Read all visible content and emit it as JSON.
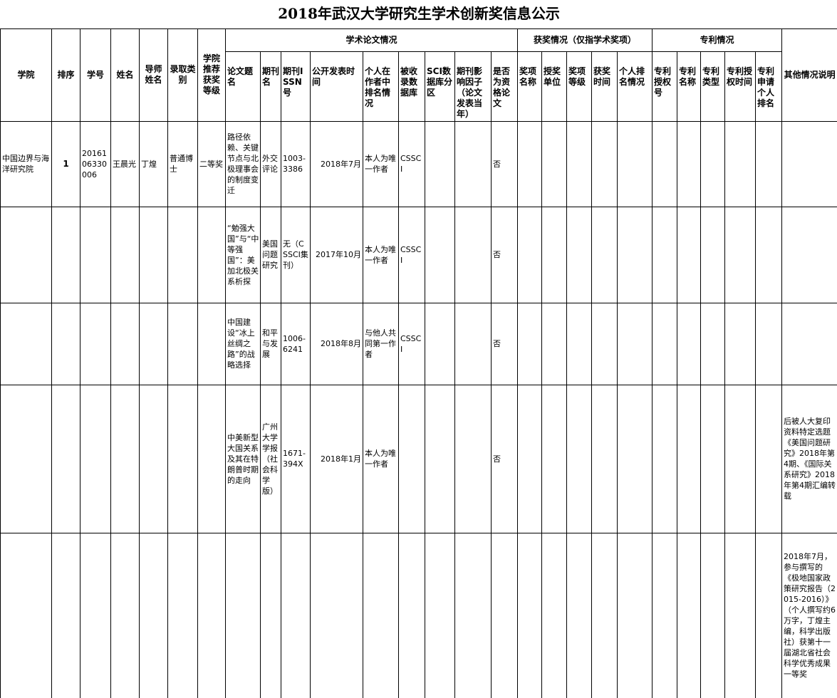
{
  "header": {
    "title": "2018年武汉大学研究生学术创新奖信息公示",
    "groups": [
      "学术论文情况",
      "获奖情况（仅指学术奖项）",
      "专利情况"
    ],
    "columns": [
      "学院",
      "排序",
      "学号",
      "姓名",
      "导师姓名",
      "录取类别",
      "学院推荐获奖等级",
      "论文题名",
      "期刊名",
      "期刊ISSN号",
      "公开发表时间",
      "个人在作者中排名情况",
      "被收录数据库",
      "SCI数据库分区",
      "期刊影响因子（论文发表当年）",
      "是否为资格论文",
      "奖项名称",
      "授奖单位",
      "奖项等级",
      "获奖时间",
      "个人排名情况",
      "专利授权号",
      "专利名称",
      "专利类型",
      "专利授权时间",
      "专利申请个人排名",
      "其他情况说明"
    ]
  },
  "table": {
    "rows": [
      [
        "中国边界与海洋研究院",
        1,
        "2016106330006",
        "王晨光",
        "丁煌",
        "普通博士",
        "二等奖",
        "路径依赖、关键节点与北极理事会的制度变迁",
        "外交评论",
        "1003-3386",
        "2018年7月",
        "本人为唯一作者",
        "CSSCI",
        null,
        null,
        "否",
        null,
        null,
        null,
        null,
        null,
        null,
        null,
        null,
        null,
        null,
        null
      ],
      [
        null,
        null,
        null,
        null,
        null,
        null,
        null,
        "“勉强大国”与“中等强国”：美加北极关系析探",
        "美国问题研究",
        "无（CSSCI集刊）",
        "2017年10月",
        "本人为唯一作者",
        "CSSCI",
        null,
        null,
        "否",
        null,
        null,
        null,
        null,
        null,
        null,
        null,
        null,
        null,
        null,
        null
      ],
      [
        null,
        null,
        null,
        null,
        null,
        null,
        null,
        "中国建设“冰上丝绸之路”的战略选择",
        "和平与发展",
        "1006-6241",
        "2018年8月",
        "与他人共同第一作者",
        "CSSCI",
        null,
        null,
        "否",
        null,
        null,
        null,
        null,
        null,
        null,
        null,
        null,
        null,
        null,
        null
      ],
      [
        null,
        null,
        null,
        null,
        null,
        null,
        null,
        "中美新型大国关系及其在特朗普时期的走向",
        "广州大学学报（社会科学版）",
        "1671-394X",
        "2018年1月",
        "本人为唯一作者",
        null,
        null,
        null,
        "否",
        null,
        null,
        null,
        null,
        null,
        null,
        null,
        null,
        null,
        null,
        "后被人大复印资料特定选题《美国问题研究》2018年第4期、《国际关系研究》2018年第4期汇编转载"
      ],
      [
        null,
        null,
        null,
        null,
        null,
        null,
        null,
        null,
        null,
        null,
        null,
        null,
        null,
        null,
        null,
        null,
        null,
        null,
        null,
        null,
        null,
        null,
        null,
        null,
        null,
        null,
        "2018年7月，参与撰写的《极地国家政策研究报告（2015-2016）》（个人撰写约6万字，丁煌主编，科学出版社）获第十一届湖北省社会科学优秀成果一等奖"
      ]
    ]
  }
}
